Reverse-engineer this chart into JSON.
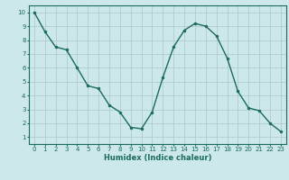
{
  "x": [
    0,
    1,
    2,
    3,
    4,
    5,
    6,
    7,
    8,
    9,
    10,
    11,
    12,
    13,
    14,
    15,
    16,
    17,
    18,
    19,
    20,
    21,
    22,
    23
  ],
  "y": [
    10.0,
    8.6,
    7.5,
    7.3,
    6.0,
    4.7,
    4.5,
    3.3,
    2.8,
    1.7,
    1.6,
    2.8,
    5.3,
    7.5,
    8.7,
    9.2,
    9.0,
    8.3,
    6.7,
    4.3,
    3.1,
    2.9,
    2.0,
    1.4
  ],
  "line_color": "#1a6b5a",
  "marker": "o",
  "marker_size": 2.0,
  "bg_color": "#cce8e8",
  "grid_color": "#b0cccc",
  "xlabel": "Humidex (Indice chaleur)",
  "xlim": [
    -0.5,
    23.5
  ],
  "ylim": [
    0.5,
    10.5
  ],
  "xticks": [
    0,
    1,
    2,
    3,
    4,
    5,
    6,
    7,
    8,
    9,
    10,
    11,
    12,
    13,
    14,
    15,
    16,
    17,
    18,
    19,
    20,
    21,
    22,
    23
  ],
  "yticks": [
    1,
    2,
    3,
    4,
    5,
    6,
    7,
    8,
    9,
    10
  ],
  "tick_color": "#1a6b5a",
  "label_color": "#1a6b5a",
  "spine_color": "#1a6b5a",
  "tick_fontsize": 5.0,
  "xlabel_fontsize": 6.0,
  "linewidth": 1.0
}
